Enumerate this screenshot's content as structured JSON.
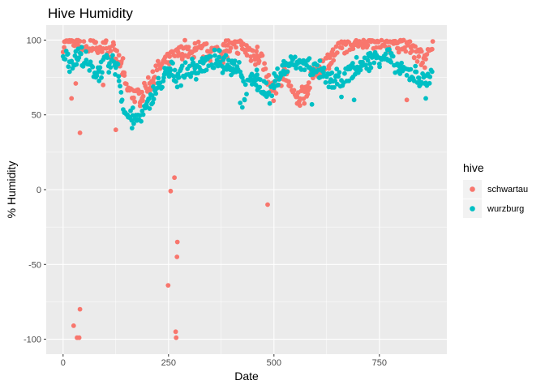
{
  "chart_data": {
    "type": "scatter",
    "title": "Hive Humidity",
    "xlabel": "Date",
    "ylabel": "% Humidity",
    "xlim": [
      -40,
      910
    ],
    "ylim": [
      -110,
      110
    ],
    "x_ticks": [
      0,
      250,
      500,
      750
    ],
    "x_tick_labels": [
      "0",
      "250",
      "500",
      "750"
    ],
    "y_ticks": [
      -100,
      -50,
      0,
      50,
      100
    ],
    "y_tick_labels": [
      "-100",
      "-50",
      "0",
      "50",
      "100"
    ],
    "grid": true,
    "legend": {
      "title": "hive",
      "position": "right"
    },
    "series": [
      {
        "name": "schwartau",
        "color": "#F8766D",
        "curve": [
          [
            0,
            97
          ],
          [
            10,
            98
          ],
          [
            20,
            99
          ],
          [
            40,
            97
          ],
          [
            50,
            93
          ],
          [
            60,
            95
          ],
          [
            70,
            98
          ],
          [
            80,
            97
          ],
          [
            90,
            95
          ],
          [
            100,
            94
          ],
          [
            110,
            93
          ],
          [
            120,
            92
          ],
          [
            130,
            88
          ],
          [
            140,
            80
          ],
          [
            150,
            68
          ],
          [
            160,
            65
          ],
          [
            170,
            63
          ],
          [
            180,
            62
          ],
          [
            190,
            65
          ],
          [
            200,
            70
          ],
          [
            210,
            72
          ],
          [
            220,
            80
          ],
          [
            240,
            85
          ],
          [
            260,
            88
          ],
          [
            270,
            90
          ],
          [
            280,
            92
          ],
          [
            290,
            93
          ],
          [
            300,
            90
          ],
          [
            310,
            91
          ],
          [
            320,
            92
          ],
          [
            340,
            93
          ],
          [
            360,
            92
          ],
          [
            380,
            93
          ],
          [
            400,
            95
          ],
          [
            420,
            96
          ],
          [
            440,
            93
          ],
          [
            460,
            90
          ],
          [
            470,
            88
          ],
          [
            480,
            80
          ],
          [
            490,
            70
          ],
          [
            500,
            66
          ],
          [
            510,
            72
          ],
          [
            520,
            75
          ],
          [
            530,
            78
          ],
          [
            540,
            68
          ],
          [
            550,
            60
          ],
          [
            560,
            62
          ],
          [
            570,
            65
          ],
          [
            580,
            68
          ],
          [
            590,
            75
          ],
          [
            600,
            80
          ],
          [
            620,
            85
          ],
          [
            640,
            90
          ],
          [
            660,
            95
          ],
          [
            680,
            98
          ],
          [
            700,
            99
          ],
          [
            720,
            100
          ],
          [
            740,
            100
          ],
          [
            760,
            100
          ],
          [
            780,
            100
          ],
          [
            800,
            99
          ],
          [
            820,
            96
          ],
          [
            840,
            90
          ],
          [
            860,
            88
          ],
          [
            875,
            93
          ]
        ],
        "extra_points": [
          [
            20,
            61
          ],
          [
            30,
            71
          ],
          [
            40,
            38
          ],
          [
            125,
            40
          ],
          [
            95,
            70
          ],
          [
            25,
            -91
          ],
          [
            33,
            -99
          ],
          [
            38,
            -99
          ],
          [
            40,
            -80
          ],
          [
            249,
            -64
          ],
          [
            255,
            -1
          ],
          [
            264,
            8
          ],
          [
            267,
            -95
          ],
          [
            268,
            -99
          ],
          [
            270,
            -45
          ],
          [
            271,
            -35
          ],
          [
            485,
            -10
          ],
          [
            815,
            60
          ]
        ]
      },
      {
        "name": "wurzburg",
        "color": "#00BFC4",
        "curve": [
          [
            0,
            92
          ],
          [
            10,
            88
          ],
          [
            20,
            85
          ],
          [
            30,
            88
          ],
          [
            40,
            90
          ],
          [
            50,
            86
          ],
          [
            60,
            82
          ],
          [
            70,
            80
          ],
          [
            80,
            78
          ],
          [
            90,
            82
          ],
          [
            100,
            85
          ],
          [
            110,
            82
          ],
          [
            120,
            86
          ],
          [
            130,
            80
          ],
          [
            140,
            60
          ],
          [
            150,
            50
          ],
          [
            160,
            48
          ],
          [
            170,
            46
          ],
          [
            180,
            48
          ],
          [
            190,
            52
          ],
          [
            200,
            55
          ],
          [
            210,
            62
          ],
          [
            220,
            66
          ],
          [
            230,
            70
          ],
          [
            240,
            75
          ],
          [
            250,
            78
          ],
          [
            260,
            80
          ],
          [
            270,
            76
          ],
          [
            280,
            78
          ],
          [
            290,
            80
          ],
          [
            300,
            80
          ],
          [
            320,
            82
          ],
          [
            340,
            84
          ],
          [
            360,
            86
          ],
          [
            380,
            85
          ],
          [
            400,
            84
          ],
          [
            420,
            83
          ],
          [
            430,
            65
          ],
          [
            440,
            70
          ],
          [
            450,
            75
          ],
          [
            460,
            72
          ],
          [
            470,
            70
          ],
          [
            480,
            65
          ],
          [
            490,
            62
          ],
          [
            500,
            70
          ],
          [
            510,
            75
          ],
          [
            520,
            80
          ],
          [
            540,
            85
          ],
          [
            560,
            84
          ],
          [
            580,
            83
          ],
          [
            600,
            80
          ],
          [
            610,
            78
          ],
          [
            620,
            74
          ],
          [
            640,
            72
          ],
          [
            660,
            74
          ],
          [
            680,
            78
          ],
          [
            700,
            82
          ],
          [
            720,
            85
          ],
          [
            740,
            88
          ],
          [
            760,
            90
          ],
          [
            780,
            85
          ],
          [
            800,
            80
          ],
          [
            820,
            78
          ],
          [
            840,
            75
          ],
          [
            860,
            72
          ],
          [
            875,
            80
          ]
        ],
        "extra_points": [
          [
            420,
            58
          ],
          [
            425,
            55
          ],
          [
            590,
            57
          ],
          [
            690,
            60
          ],
          [
            660,
            62
          ],
          [
            860,
            61
          ]
        ]
      }
    ]
  }
}
